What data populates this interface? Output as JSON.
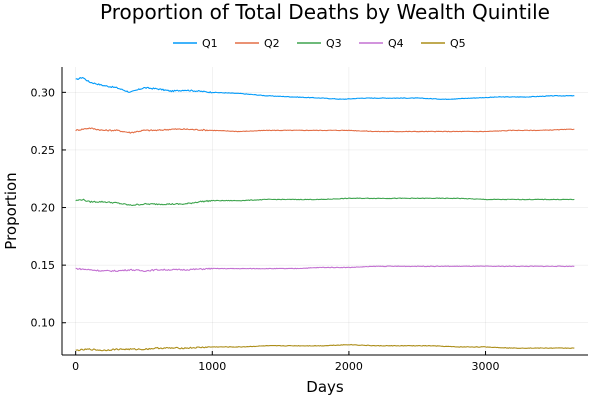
{
  "chart_data": {
    "type": "line",
    "title": "Proportion of Total Deaths by Wealth Quintile",
    "xlabel": "Days",
    "ylabel": "Proportion",
    "xlim": [
      -100,
      3750
    ],
    "ylim": [
      0.072,
      0.322
    ],
    "xticks": [
      0,
      1000,
      2000,
      3000
    ],
    "xtick_labels": [
      "0",
      "1000",
      "2000",
      "3000"
    ],
    "yticks": [
      0.1,
      0.15,
      0.2,
      0.25,
      0.3
    ],
    "ytick_labels": [
      "0.10",
      "0.15",
      "0.20",
      "0.25",
      "0.30"
    ],
    "grid": true,
    "legend": "top",
    "series": [
      {
        "name": "Q1",
        "color": "#009AFA",
        "points": [
          [
            0,
            0.311
          ],
          [
            50,
            0.313
          ],
          [
            100,
            0.309
          ],
          [
            200,
            0.306
          ],
          [
            300,
            0.304
          ],
          [
            400,
            0.3
          ],
          [
            500,
            0.304
          ],
          [
            600,
            0.303
          ],
          [
            700,
            0.301
          ],
          [
            800,
            0.302
          ],
          [
            900,
            0.301
          ],
          [
            1000,
            0.3
          ],
          [
            1200,
            0.299
          ],
          [
            1400,
            0.297
          ],
          [
            1600,
            0.296
          ],
          [
            1800,
            0.295
          ],
          [
            1950,
            0.294
          ],
          [
            2100,
            0.295
          ],
          [
            2300,
            0.295
          ],
          [
            2500,
            0.295
          ],
          [
            2700,
            0.294
          ],
          [
            2900,
            0.295
          ],
          [
            3100,
            0.296
          ],
          [
            3300,
            0.296
          ],
          [
            3500,
            0.297
          ],
          [
            3650,
            0.297
          ]
        ]
      },
      {
        "name": "Q2",
        "color": "#E36F47",
        "points": [
          [
            0,
            0.267
          ],
          [
            100,
            0.269
          ],
          [
            200,
            0.267
          ],
          [
            300,
            0.267
          ],
          [
            400,
            0.265
          ],
          [
            500,
            0.267
          ],
          [
            600,
            0.267
          ],
          [
            700,
            0.268
          ],
          [
            800,
            0.268
          ],
          [
            1000,
            0.267
          ],
          [
            1200,
            0.266
          ],
          [
            1400,
            0.267
          ],
          [
            1600,
            0.267
          ],
          [
            1800,
            0.267
          ],
          [
            2000,
            0.267
          ],
          [
            2200,
            0.266
          ],
          [
            2400,
            0.266
          ],
          [
            2600,
            0.266
          ],
          [
            2800,
            0.266
          ],
          [
            3000,
            0.266
          ],
          [
            3200,
            0.267
          ],
          [
            3400,
            0.267
          ],
          [
            3650,
            0.268
          ]
        ]
      },
      {
        "name": "Q3",
        "color": "#3EA44E",
        "points": [
          [
            0,
            0.206
          ],
          [
            50,
            0.207
          ],
          [
            100,
            0.205
          ],
          [
            200,
            0.205
          ],
          [
            300,
            0.204
          ],
          [
            400,
            0.202
          ],
          [
            500,
            0.203
          ],
          [
            600,
            0.203
          ],
          [
            700,
            0.203
          ],
          [
            800,
            0.203
          ],
          [
            900,
            0.205
          ],
          [
            1000,
            0.206
          ],
          [
            1200,
            0.206
          ],
          [
            1400,
            0.207
          ],
          [
            1600,
            0.207
          ],
          [
            1800,
            0.207
          ],
          [
            2000,
            0.208
          ],
          [
            2200,
            0.208
          ],
          [
            2400,
            0.208
          ],
          [
            2600,
            0.208
          ],
          [
            2800,
            0.208
          ],
          [
            3000,
            0.207
          ],
          [
            3200,
            0.207
          ],
          [
            3400,
            0.207
          ],
          [
            3650,
            0.207
          ]
        ]
      },
      {
        "name": "Q4",
        "color": "#C371D2",
        "points": [
          [
            0,
            0.147
          ],
          [
            100,
            0.146
          ],
          [
            200,
            0.145
          ],
          [
            300,
            0.145
          ],
          [
            400,
            0.146
          ],
          [
            500,
            0.145
          ],
          [
            600,
            0.146
          ],
          [
            800,
            0.146
          ],
          [
            1000,
            0.147
          ],
          [
            1200,
            0.147
          ],
          [
            1400,
            0.147
          ],
          [
            1600,
            0.147
          ],
          [
            1800,
            0.148
          ],
          [
            2000,
            0.148
          ],
          [
            2200,
            0.149
          ],
          [
            2400,
            0.149
          ],
          [
            2600,
            0.149
          ],
          [
            2800,
            0.149
          ],
          [
            3000,
            0.149
          ],
          [
            3200,
            0.149
          ],
          [
            3400,
            0.149
          ],
          [
            3650,
            0.149
          ]
        ]
      },
      {
        "name": "Q5",
        "color": "#AC8D18",
        "points": [
          [
            0,
            0.076
          ],
          [
            100,
            0.077
          ],
          [
            200,
            0.076
          ],
          [
            300,
            0.077
          ],
          [
            400,
            0.077
          ],
          [
            500,
            0.077
          ],
          [
            600,
            0.078
          ],
          [
            800,
            0.078
          ],
          [
            1000,
            0.079
          ],
          [
            1200,
            0.079
          ],
          [
            1400,
            0.08
          ],
          [
            1600,
            0.08
          ],
          [
            1800,
            0.08
          ],
          [
            2000,
            0.081
          ],
          [
            2200,
            0.08
          ],
          [
            2400,
            0.08
          ],
          [
            2600,
            0.08
          ],
          [
            2800,
            0.079
          ],
          [
            3000,
            0.079
          ],
          [
            3200,
            0.078
          ],
          [
            3400,
            0.078
          ],
          [
            3650,
            0.078
          ]
        ]
      }
    ]
  }
}
